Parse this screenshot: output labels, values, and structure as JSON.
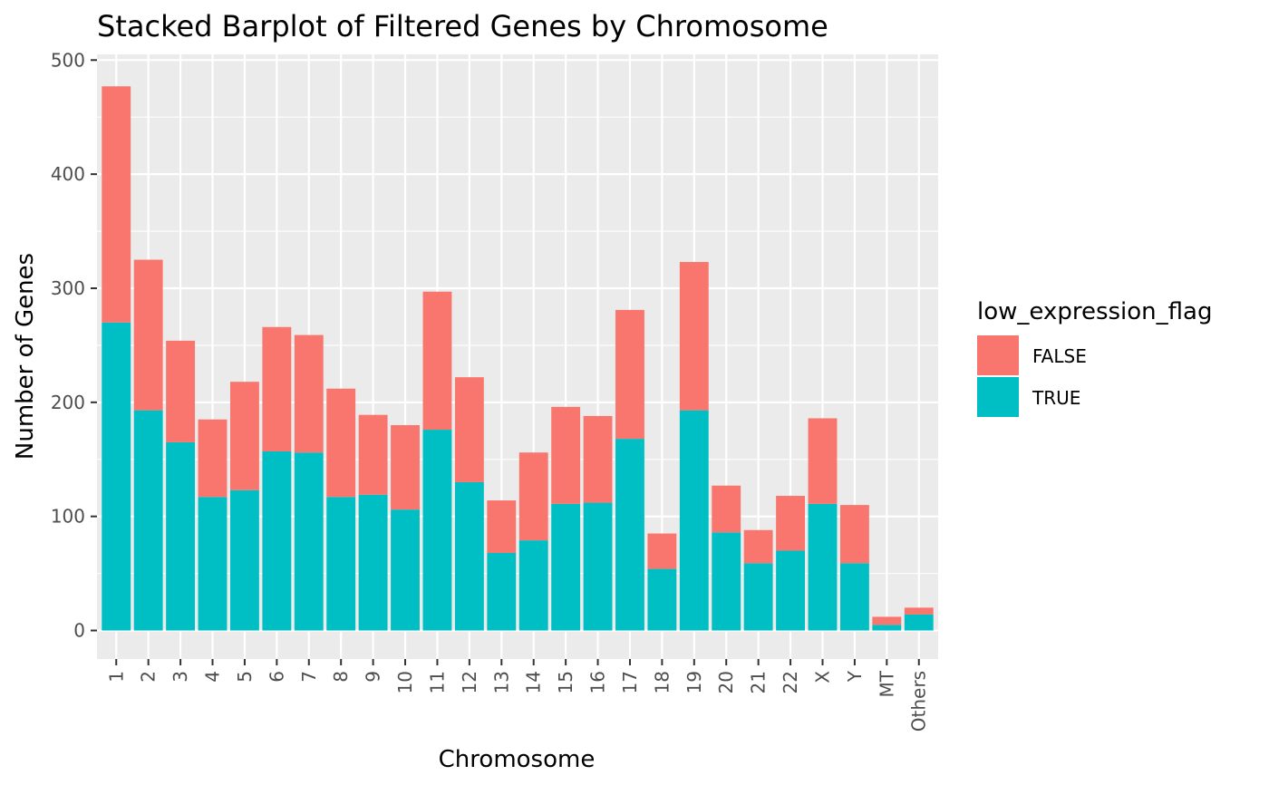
{
  "chart_data": {
    "type": "bar",
    "stacked": true,
    "title": "Stacked Barplot of Filtered Genes by Chromosome",
    "xlabel": "Chromosome",
    "ylabel": "Number of Genes",
    "ylim": [
      -25,
      505
    ],
    "yticks": [
      0,
      100,
      200,
      300,
      400,
      500
    ],
    "grid": true,
    "categories": [
      "1",
      "2",
      "3",
      "4",
      "5",
      "6",
      "7",
      "8",
      "9",
      "10",
      "11",
      "12",
      "13",
      "14",
      "15",
      "16",
      "17",
      "18",
      "19",
      "20",
      "21",
      "22",
      "X",
      "Y",
      "MT",
      "Others"
    ],
    "series": [
      {
        "name": "TRUE",
        "color": "#00BFC4",
        "values": [
          270,
          193,
          165,
          117,
          123,
          157,
          156,
          117,
          119,
          106,
          176,
          130,
          68,
          79,
          111,
          112,
          168,
          54,
          193,
          86,
          59,
          70,
          111,
          59,
          5,
          14
        ]
      },
      {
        "name": "FALSE",
        "color": "#F8766D",
        "values": [
          207,
          132,
          89,
          68,
          95,
          109,
          103,
          95,
          70,
          74,
          121,
          92,
          46,
          77,
          85,
          76,
          113,
          31,
          130,
          41,
          29,
          48,
          75,
          51,
          7,
          6
        ]
      }
    ],
    "legend": {
      "title": "low_expression_flag",
      "position": "right",
      "entries": [
        {
          "label": "FALSE",
          "color": "#F8766D"
        },
        {
          "label": "TRUE",
          "color": "#00BFC4"
        }
      ]
    },
    "panel_background": "#EBEBEB",
    "gridline_color": "#FFFFFF"
  }
}
